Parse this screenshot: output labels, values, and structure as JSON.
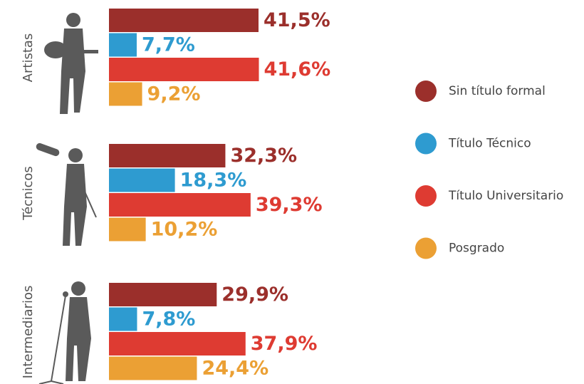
{
  "chart_data": {
    "type": "bar",
    "categories": [
      "Artistas",
      "Técnicos",
      "Intermediarios"
    ],
    "series": [
      {
        "name": "Sin título formal",
        "color": "#9b2f2b",
        "values": [
          41.5,
          32.3,
          29.9
        ],
        "value_labels": [
          "41,5%",
          "32,3%",
          "29,9%"
        ]
      },
      {
        "name": "Título Técnico",
        "color": "#2e9bd0",
        "values": [
          7.7,
          18.3,
          7.8
        ],
        "value_labels": [
          "7,7%",
          "18,3%",
          "7,8%"
        ]
      },
      {
        "name": "Título Universitario",
        "color": "#de3b32",
        "values": [
          41.6,
          39.3,
          37.9
        ],
        "value_labels": [
          "41,6%",
          "39,3%",
          "37,9%"
        ]
      },
      {
        "name": "Posgrado",
        "color": "#eba034",
        "values": [
          9.2,
          10.2,
          24.4
        ],
        "value_labels": [
          "9,2%",
          "10,2%",
          "24,4%"
        ]
      }
    ]
  }
}
